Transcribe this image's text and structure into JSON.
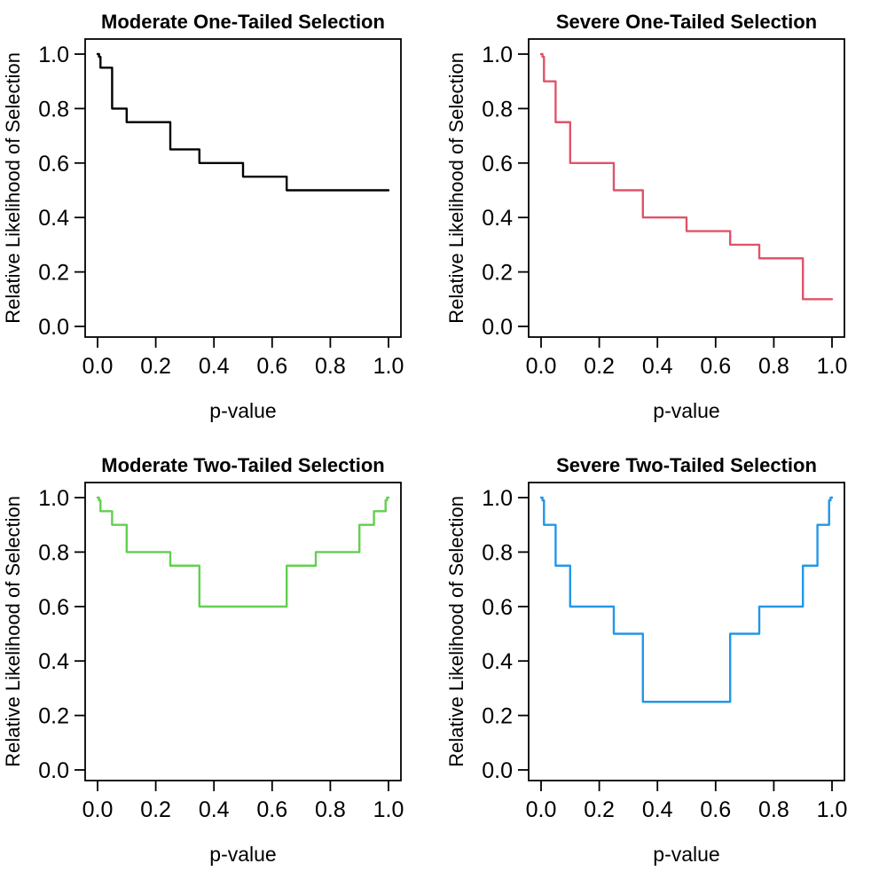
{
  "figure": {
    "background": "#ffffff",
    "layout": "2x2-grid"
  },
  "chart_data": [
    {
      "type": "line",
      "subtype": "step",
      "title": "Moderate One-Tailed Selection",
      "xlabel": "p-value",
      "ylabel": "Relative Likelihood of Selection",
      "color": "#000000",
      "xlim": [
        0.0,
        1.0
      ],
      "ylim": [
        0.0,
        1.0
      ],
      "grid": false,
      "legend": "none",
      "xticks": {
        "values": [
          0.0,
          0.2,
          0.4,
          0.6,
          0.8,
          1.0
        ],
        "labels": [
          "0.0",
          "0.2",
          "0.4",
          "0.6",
          "0.8",
          "1.0"
        ]
      },
      "yticks": {
        "values": [
          0.0,
          0.2,
          0.4,
          0.6,
          0.8,
          1.0
        ],
        "labels": [
          "0.0",
          "0.2",
          "0.4",
          "0.6",
          "0.8",
          "1.0"
        ]
      },
      "step": {
        "breaks": [
          0,
          0.005,
          0.01,
          0.05,
          0.1,
          0.25,
          0.35,
          0.5,
          0.65,
          0.75,
          0.9,
          0.95,
          0.99,
          0.995,
          1.0
        ],
        "weights": [
          1.0,
          0.99,
          0.95,
          0.8,
          0.75,
          0.65,
          0.6,
          0.55,
          0.5,
          0.5,
          0.5,
          0.5,
          0.5,
          0.5
        ]
      }
    },
    {
      "type": "line",
      "subtype": "step",
      "title": "Severe One-Tailed Selection",
      "xlabel": "p-value",
      "ylabel": "Relative Likelihood of Selection",
      "color": "#DF536B",
      "xlim": [
        0.0,
        1.0
      ],
      "ylim": [
        0.0,
        1.0
      ],
      "grid": false,
      "legend": "none",
      "xticks": {
        "values": [
          0.0,
          0.2,
          0.4,
          0.6,
          0.8,
          1.0
        ],
        "labels": [
          "0.0",
          "0.2",
          "0.4",
          "0.6",
          "0.8",
          "1.0"
        ]
      },
      "yticks": {
        "values": [
          0.0,
          0.2,
          0.4,
          0.6,
          0.8,
          1.0
        ],
        "labels": [
          "0.0",
          "0.2",
          "0.4",
          "0.6",
          "0.8",
          "1.0"
        ]
      },
      "step": {
        "breaks": [
          0,
          0.005,
          0.01,
          0.05,
          0.1,
          0.25,
          0.35,
          0.5,
          0.65,
          0.75,
          0.9,
          0.95,
          0.99,
          0.995,
          1.0
        ],
        "weights": [
          1.0,
          0.99,
          0.9,
          0.75,
          0.6,
          0.5,
          0.4,
          0.35,
          0.3,
          0.25,
          0.1,
          0.1,
          0.1,
          0.1
        ]
      }
    },
    {
      "type": "line",
      "subtype": "step",
      "title": "Moderate Two-Tailed Selection",
      "xlabel": "p-value",
      "ylabel": "Relative Likelihood of Selection",
      "color": "#61D04F",
      "xlim": [
        0.0,
        1.0
      ],
      "ylim": [
        0.0,
        1.0
      ],
      "grid": false,
      "legend": "none",
      "xticks": {
        "values": [
          0.0,
          0.2,
          0.4,
          0.6,
          0.8,
          1.0
        ],
        "labels": [
          "0.0",
          "0.2",
          "0.4",
          "0.6",
          "0.8",
          "1.0"
        ]
      },
      "yticks": {
        "values": [
          0.0,
          0.2,
          0.4,
          0.6,
          0.8,
          1.0
        ],
        "labels": [
          "0.0",
          "0.2",
          "0.4",
          "0.6",
          "0.8",
          "1.0"
        ]
      },
      "step": {
        "breaks": [
          0,
          0.005,
          0.01,
          0.05,
          0.1,
          0.25,
          0.35,
          0.5,
          0.65,
          0.75,
          0.9,
          0.95,
          0.99,
          0.995,
          1.0
        ],
        "weights": [
          1.0,
          0.99,
          0.95,
          0.9,
          0.8,
          0.75,
          0.6,
          0.6,
          0.75,
          0.8,
          0.9,
          0.95,
          0.99,
          1.0
        ]
      }
    },
    {
      "type": "line",
      "subtype": "step",
      "title": "Severe Two-Tailed Selection",
      "xlabel": "p-value",
      "ylabel": "Relative Likelihood of Selection",
      "color": "#2297E6",
      "xlim": [
        0.0,
        1.0
      ],
      "ylim": [
        0.0,
        1.0
      ],
      "grid": false,
      "legend": "none",
      "xticks": {
        "values": [
          0.0,
          0.2,
          0.4,
          0.6,
          0.8,
          1.0
        ],
        "labels": [
          "0.0",
          "0.2",
          "0.4",
          "0.6",
          "0.8",
          "1.0"
        ]
      },
      "yticks": {
        "values": [
          0.0,
          0.2,
          0.4,
          0.6,
          0.8,
          1.0
        ],
        "labels": [
          "0.0",
          "0.2",
          "0.4",
          "0.6",
          "0.8",
          "1.0"
        ]
      },
      "step": {
        "breaks": [
          0,
          0.005,
          0.01,
          0.05,
          0.1,
          0.25,
          0.35,
          0.5,
          0.65,
          0.75,
          0.9,
          0.95,
          0.99,
          0.995,
          1.0
        ],
        "weights": [
          1.0,
          0.99,
          0.9,
          0.75,
          0.6,
          0.5,
          0.25,
          0.25,
          0.5,
          0.6,
          0.75,
          0.9,
          0.99,
          1.0
        ]
      }
    }
  ]
}
